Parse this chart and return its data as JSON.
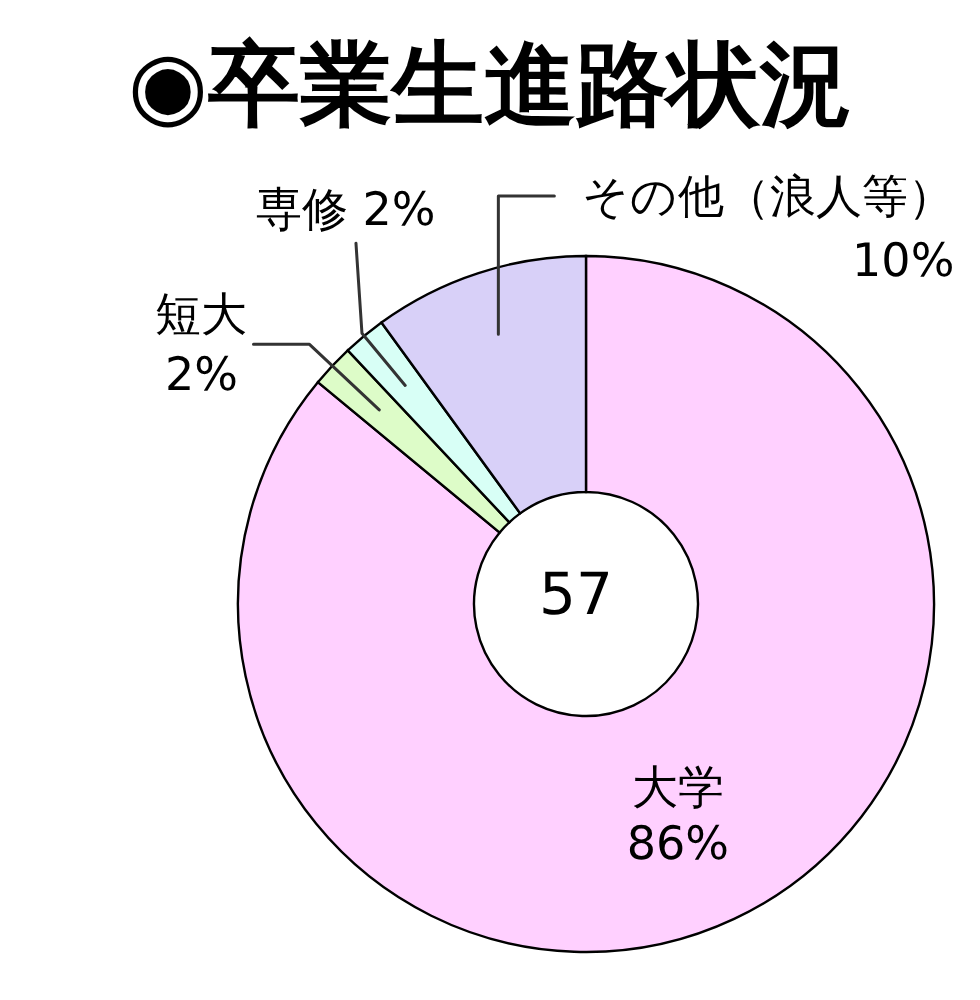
{
  "chart_data": {
    "type": "donut",
    "title": "◉卒業生進路状況",
    "categories": [
      "大学",
      "短大",
      "専修",
      "その他（浪人等）"
    ],
    "values": [
      86,
      2,
      2,
      10
    ],
    "colors": [
      "#ffd0ff",
      "#ddfcc8",
      "#d8fff6",
      "#d8d0f8"
    ],
    "value_labels": [
      "86%",
      "2%",
      "2%",
      "10%"
    ],
    "annotations": [
      "57"
    ]
  }
}
